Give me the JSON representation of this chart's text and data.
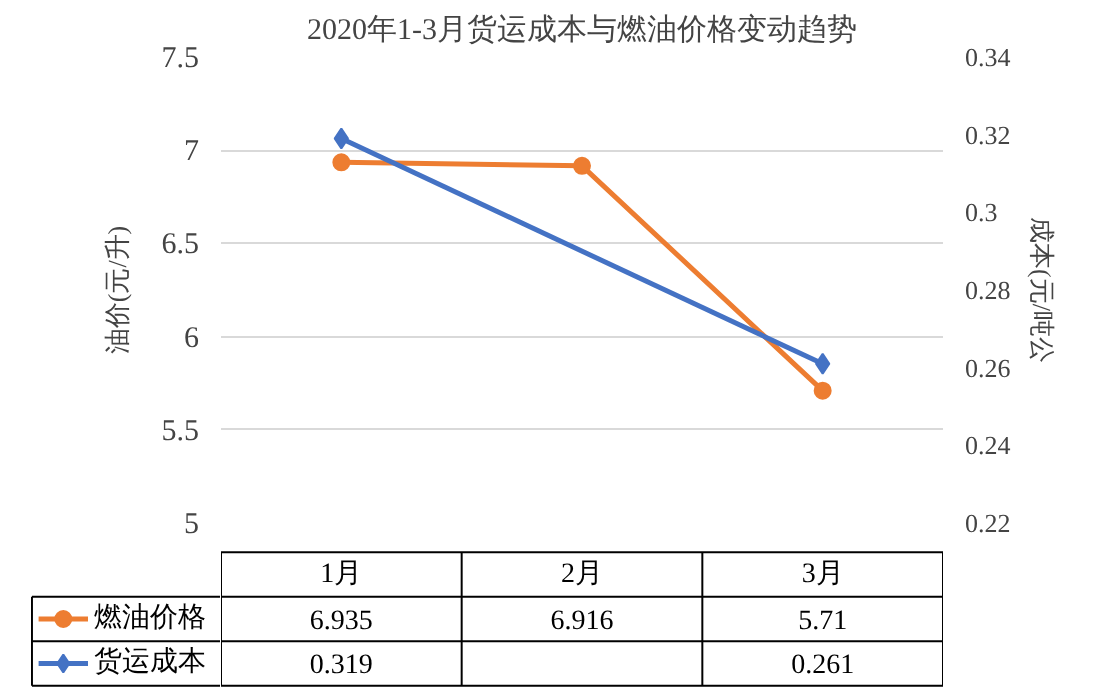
{
  "chart_data": {
    "type": "line",
    "title": "2020年1-3月货运成本与燃油价格变动趋势",
    "categories": [
      "1月",
      "2月",
      "3月"
    ],
    "ylabel": "油价(元/升)",
    "y2label": "成本(元/吨公",
    "ylim": [
      5,
      7.5
    ],
    "yticks": [
      5,
      5.5,
      6,
      6.5,
      7,
      7.5
    ],
    "y2lim": [
      0.22,
      0.34
    ],
    "y2ticks": [
      0.22,
      0.24,
      0.26,
      0.28,
      0.3,
      0.32,
      0.34
    ],
    "series": [
      {
        "name": "燃油价格",
        "color": "#ed7d31",
        "values": [
          6.935,
          6.916,
          5.71
        ],
        "marker": "circle"
      },
      {
        "name": "货运成本",
        "color": "#4472c4",
        "values": [
          0.319,
          null,
          0.261
        ],
        "marker": "diamond",
        "axis": "y2"
      }
    ],
    "data_labels": true,
    "grid": "y",
    "legend": "bottom",
    "line_style": "solid"
  }
}
